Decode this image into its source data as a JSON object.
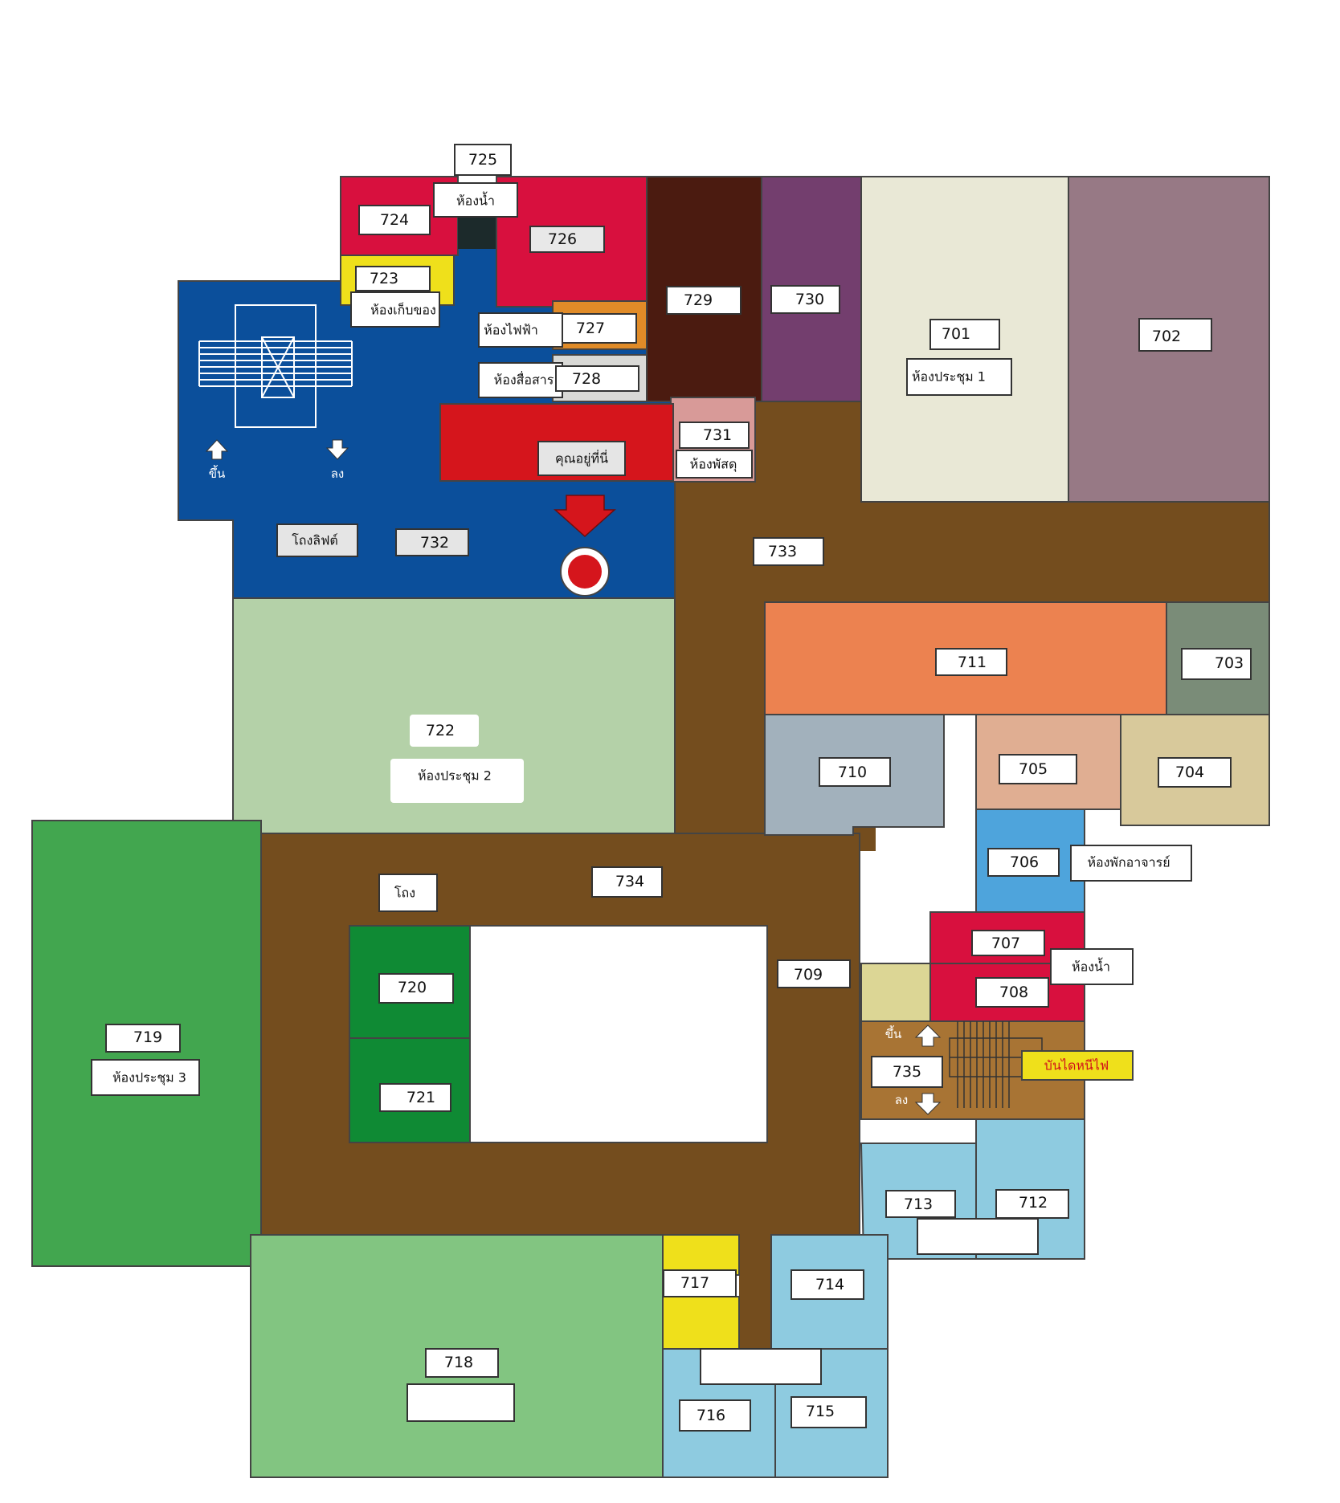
{
  "colors": {
    "corridor": "#744d1e",
    "lobby_blue": "#0b4f9b",
    "red": "#d8103e",
    "dark_red": "#4b1b10",
    "purple": "#733e6e",
    "cream": "#e9e8d6",
    "mauve": "#977985",
    "orange": "#ec8250",
    "grey_green": "#7a8c78",
    "slate": "#a2b1bc",
    "peach": "#e0ae92",
    "tan": "#d8c99b",
    "sky": "#4ea4dc",
    "light_blue": "#8ecbe0",
    "light_green": "#b4d1a8",
    "green": "#42a64f",
    "dark_green": "#0f8a34",
    "mid_green": "#82c581",
    "yellow": "#efe01b",
    "khaki": "#dcd695",
    "stair_brown": "#a87434",
    "here_red": "#d5151c"
  },
  "rooms": {
    "r701": "701",
    "r702": "702",
    "r703": "703",
    "r704": "704",
    "r705": "705",
    "r706": "706",
    "r707": "707",
    "r708": "708",
    "r709": "709",
    "r710": "710",
    "r711": "711",
    "r712": "712",
    "r713": "713",
    "r714": "714",
    "r715": "715",
    "r716": "716",
    "r717": "717",
    "r718": "718",
    "r719": "719",
    "r720": "720",
    "r721": "721",
    "r722": "722",
    "r723": "723",
    "r724": "724",
    "r725": "725",
    "r726": "726",
    "r727": "727",
    "r728": "728",
    "r729": "729",
    "r730": "730",
    "r731": "731",
    "r732": "732",
    "r733": "733",
    "r734": "734",
    "r735": "735"
  },
  "labels": {
    "restroom_top": "ห้องน้ำ",
    "storage": "ห้องเก็บของ",
    "electrical": "ห้องไฟฟ้า",
    "communication": "ห้องสื่อสาร",
    "you_are_here": "คุณอยู่ที่นี่",
    "supplies": "ห้องพัสดุ",
    "meeting_1": "ห้องประชุม 1",
    "meeting_2": "ห้องประชุม 2",
    "meeting_3": "ห้องประชุม 3",
    "lift_lobby": "โถงลิฟต์",
    "hall": "โถง",
    "teacher_lounge": "ห้องพักอาจารย์",
    "restroom_right": "ห้องน้ำ",
    "fire_escape": "บันไดหนีไฟ",
    "up": "ขึ้น",
    "down": "ลง"
  },
  "icons": {
    "up_arrow": "up-arrow-icon",
    "down_arrow": "down-arrow-icon",
    "elevator": "elevator-icon",
    "staircase": "staircase-icon",
    "location_marker": "location-marker-icon"
  }
}
